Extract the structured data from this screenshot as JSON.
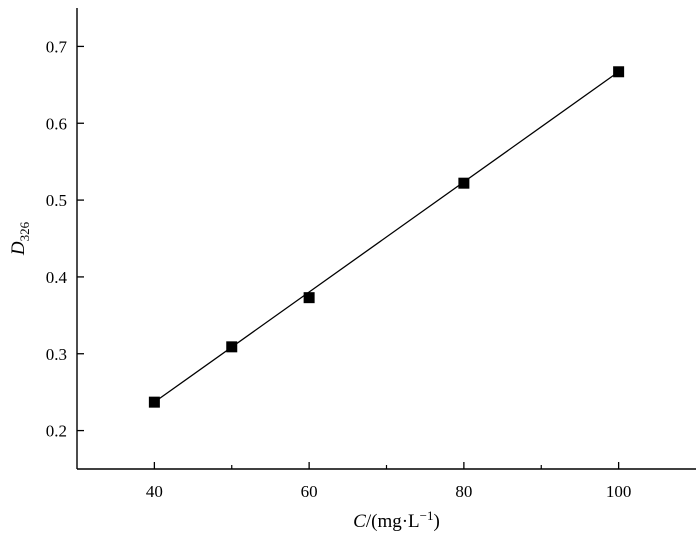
{
  "chart_data": {
    "type": "scatter",
    "xlim": [
      30,
      110
    ],
    "ylim": [
      0.15,
      0.75
    ],
    "x_ticks": [
      40,
      60,
      80,
      100
    ],
    "x_tick_labels": [
      "40",
      "60",
      "80",
      "100"
    ],
    "x_minor_ticks": [
      50,
      70,
      90
    ],
    "y_ticks": [
      0.2,
      0.3,
      0.4,
      0.5,
      0.6,
      0.7
    ],
    "y_tick_labels": [
      "0.2",
      "0.3",
      "0.4",
      "0.5",
      "0.6",
      "0.7"
    ],
    "xlabel": {
      "var": "C",
      "text": "/(mg·L",
      "sup": "−1",
      "close": ")"
    },
    "ylabel": {
      "var": "D",
      "sub": "326"
    },
    "grid": false,
    "series": [
      {
        "x": [
          40,
          50,
          60,
          80,
          100
        ],
        "y": [
          0.237,
          0.309,
          0.373,
          0.522,
          0.667
        ],
        "marker": "square",
        "color": "#000000",
        "fit_line": true
      }
    ]
  }
}
